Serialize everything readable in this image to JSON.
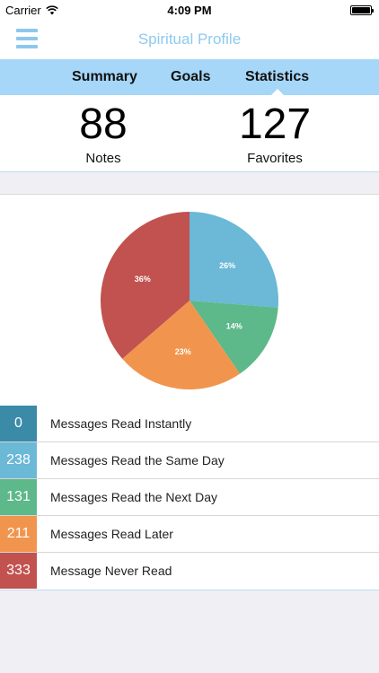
{
  "status_bar": {
    "carrier": "Carrier",
    "time": "4:09 PM"
  },
  "nav": {
    "title": "Spiritual Profile",
    "menu_icon": "hamburger-icon"
  },
  "tabs": [
    {
      "label": "Summary"
    },
    {
      "label": "Goals"
    },
    {
      "label": "Statistics",
      "active": true
    }
  ],
  "counts": {
    "notes": {
      "value": "88",
      "label": "Notes"
    },
    "favorites": {
      "value": "127",
      "label": "Favorites"
    }
  },
  "chart_data": {
    "type": "pie",
    "slices": [
      {
        "label": "26%",
        "value": 26,
        "color": "#6bb8d7"
      },
      {
        "label": "14%",
        "value": 14,
        "color": "#5db88a"
      },
      {
        "label": "23%",
        "value": 23,
        "color": "#f1954e"
      },
      {
        "label": "36%",
        "value": 36,
        "color": "#c1524f"
      }
    ]
  },
  "legend": [
    {
      "count": "0",
      "label": "Messages Read Instantly",
      "color": "#3b8ba8"
    },
    {
      "count": "238",
      "label": "Messages Read the Same Day",
      "color": "#6bb8d7"
    },
    {
      "count": "131",
      "label": "Messages Read the Next Day",
      "color": "#5db88a"
    },
    {
      "count": "211",
      "label": "Messages Read Later",
      "color": "#f1954e"
    },
    {
      "count": "333",
      "label": "Message Never Read",
      "color": "#c1524f"
    }
  ]
}
